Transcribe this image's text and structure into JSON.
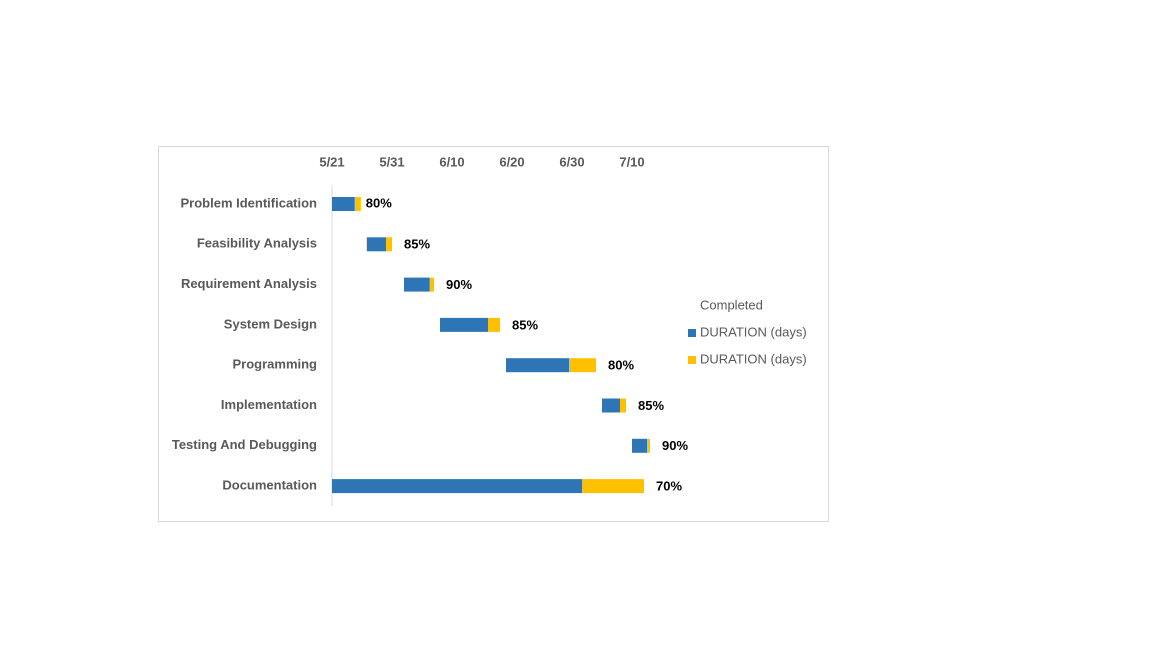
{
  "chart_data": {
    "type": "gantt",
    "categories": [
      "Problem Identification",
      "Feasibility Analysis",
      "Requirement Analysis",
      "System Design",
      "Programming",
      "Implementation",
      "Testing And Debugging",
      "Documentation"
    ],
    "series": [
      {
        "name": "Completed",
        "color": "none",
        "values": [
          0,
          5.8,
          12,
          18,
          29,
          45,
          50,
          0
        ]
      },
      {
        "name": "DURATION (days)",
        "color": "#2e75b6",
        "values": [
          3.8,
          3.2,
          4.3,
          8,
          10.5,
          3,
          2.5,
          41.7
        ]
      },
      {
        "name": "DURATION (days)",
        "color": "#ffc000",
        "values": [
          1,
          1,
          0.7,
          2,
          4.5,
          1,
          0.5,
          10.3
        ]
      }
    ],
    "annotations": [
      "80%",
      "85%",
      "90%",
      "85%",
      "80%",
      "85%",
      "90%",
      "70%"
    ],
    "xlim": [
      0,
      60
    ],
    "xticks": [
      {
        "value": 0,
        "label": "5/21"
      },
      {
        "value": 10,
        "label": "5/31"
      },
      {
        "value": 20,
        "label": "6/10"
      },
      {
        "value": 30,
        "label": "6/20"
      },
      {
        "value": 40,
        "label": "6/30"
      },
      {
        "value": 50,
        "label": "7/10"
      }
    ],
    "legend": "right"
  }
}
